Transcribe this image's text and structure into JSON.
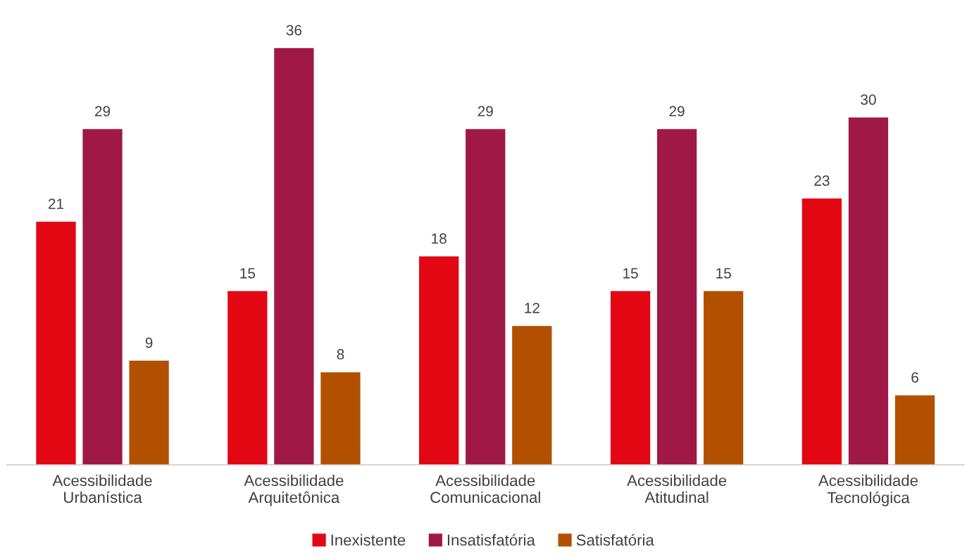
{
  "chart_data": {
    "type": "bar",
    "categories": [
      "Acessibilidade\nUrbanística",
      "Acessibilidade\nArquitetônica",
      "Acessibilidade\nComunicacional",
      "Acessibilidade\nAtitudinal",
      "Acessibilidade\nTecnológica"
    ],
    "series": [
      {
        "name": "Inexistente",
        "color": "#e30613",
        "values": [
          21,
          15,
          18,
          15,
          23
        ]
      },
      {
        "name": "Insatisfatória",
        "color": "#a01846",
        "values": [
          29,
          36,
          29,
          29,
          30
        ]
      },
      {
        "name": "Satisfatória",
        "color": "#b35000",
        "values": [
          9,
          8,
          12,
          15,
          6
        ]
      }
    ],
    "data_labels": true,
    "legend": "bottom",
    "grid": false,
    "tick_labels": "x"
  }
}
